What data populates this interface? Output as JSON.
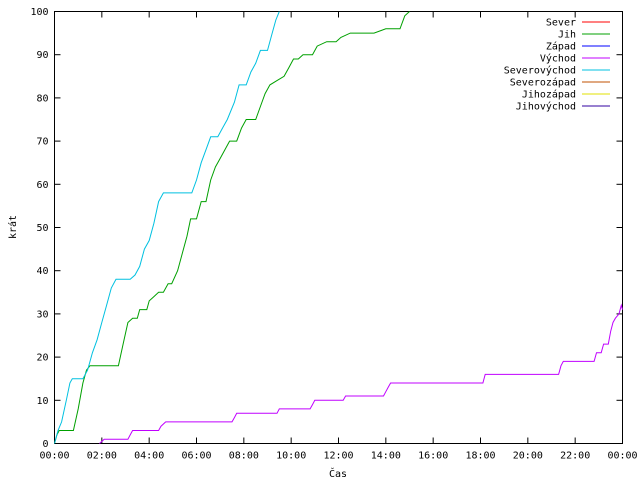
{
  "chart_data": {
    "type": "line",
    "xlabel": "Čas",
    "ylabel": "krát",
    "x_unit": "hours",
    "xlim": [
      0,
      24
    ],
    "ylim": [
      0,
      100
    ],
    "y_ticks": [
      0,
      10,
      20,
      30,
      40,
      50,
      60,
      70,
      80,
      90,
      100
    ],
    "x_ticks": [
      {
        "x": 0,
        "label": "00:00"
      },
      {
        "x": 2,
        "label": "02:00"
      },
      {
        "x": 4,
        "label": "04:00"
      },
      {
        "x": 6,
        "label": "06:00"
      },
      {
        "x": 8,
        "label": "08:00"
      },
      {
        "x": 10,
        "label": "10:00"
      },
      {
        "x": 12,
        "label": "12:00"
      },
      {
        "x": 14,
        "label": "14:00"
      },
      {
        "x": 16,
        "label": "16:00"
      },
      {
        "x": 18,
        "label": "18:00"
      },
      {
        "x": 20,
        "label": "20:00"
      },
      {
        "x": 22,
        "label": "22:00"
      },
      {
        "x": 24,
        "label": "00:00"
      }
    ],
    "grid": false,
    "legend_position": "top-right",
    "series": [
      {
        "name": "Sever",
        "color": "#ff0000",
        "points": []
      },
      {
        "name": "Jih",
        "color": "#00a000",
        "points": [
          [
            0.0,
            0
          ],
          [
            0.1,
            2
          ],
          [
            0.2,
            3
          ],
          [
            0.8,
            3
          ],
          [
            1.0,
            8
          ],
          [
            1.2,
            14
          ],
          [
            1.35,
            17
          ],
          [
            1.5,
            18
          ],
          [
            2.7,
            18
          ],
          [
            2.9,
            23
          ],
          [
            3.1,
            28
          ],
          [
            3.3,
            29
          ],
          [
            3.5,
            29
          ],
          [
            3.6,
            31
          ],
          [
            3.9,
            31
          ],
          [
            4.0,
            33
          ],
          [
            4.2,
            34
          ],
          [
            4.4,
            35
          ],
          [
            4.6,
            35
          ],
          [
            4.8,
            37
          ],
          [
            4.95,
            37
          ],
          [
            5.2,
            40
          ],
          [
            5.4,
            44
          ],
          [
            5.6,
            48
          ],
          [
            5.75,
            52
          ],
          [
            6.0,
            52
          ],
          [
            6.2,
            56
          ],
          [
            6.4,
            56
          ],
          [
            6.6,
            61
          ],
          [
            6.8,
            64
          ],
          [
            7.0,
            66
          ],
          [
            7.2,
            68
          ],
          [
            7.4,
            70
          ],
          [
            7.7,
            70
          ],
          [
            7.9,
            73
          ],
          [
            8.1,
            75
          ],
          [
            8.5,
            75
          ],
          [
            8.7,
            78
          ],
          [
            8.9,
            81
          ],
          [
            9.1,
            83
          ],
          [
            9.4,
            84
          ],
          [
            9.7,
            85
          ],
          [
            9.9,
            87
          ],
          [
            10.1,
            89
          ],
          [
            10.3,
            89
          ],
          [
            10.5,
            90
          ],
          [
            10.9,
            90
          ],
          [
            11.1,
            92
          ],
          [
            11.5,
            93
          ],
          [
            11.9,
            93
          ],
          [
            12.1,
            94
          ],
          [
            12.5,
            95
          ],
          [
            13.0,
            95
          ],
          [
            13.5,
            95
          ],
          [
            14.0,
            96
          ],
          [
            14.6,
            96
          ],
          [
            14.8,
            99
          ],
          [
            15.0,
            100
          ]
        ]
      },
      {
        "name": "Západ",
        "color": "#0000ff",
        "points": []
      },
      {
        "name": "Východ",
        "color": "#c000ff",
        "points": [
          [
            1.9,
            0
          ],
          [
            2.1,
            1
          ],
          [
            3.1,
            1
          ],
          [
            3.2,
            2
          ],
          [
            3.3,
            3
          ],
          [
            4.4,
            3
          ],
          [
            4.5,
            4
          ],
          [
            4.7,
            5
          ],
          [
            7.5,
            5
          ],
          [
            7.6,
            6
          ],
          [
            7.7,
            7
          ],
          [
            9.4,
            7
          ],
          [
            9.5,
            8
          ],
          [
            10.8,
            8
          ],
          [
            10.9,
            9
          ],
          [
            11.0,
            10
          ],
          [
            12.2,
            10
          ],
          [
            12.3,
            11
          ],
          [
            13.9,
            11
          ],
          [
            14.0,
            12
          ],
          [
            14.1,
            13
          ],
          [
            14.2,
            14
          ],
          [
            18.1,
            14
          ],
          [
            18.2,
            16
          ],
          [
            21.3,
            16
          ],
          [
            21.4,
            18
          ],
          [
            21.5,
            19
          ],
          [
            22.8,
            19
          ],
          [
            22.9,
            21
          ],
          [
            23.1,
            21
          ],
          [
            23.2,
            23
          ],
          [
            23.4,
            23
          ],
          [
            23.5,
            26
          ],
          [
            23.6,
            28
          ],
          [
            23.7,
            29
          ],
          [
            23.85,
            30
          ],
          [
            23.95,
            32
          ],
          [
            24.0,
            31
          ]
        ]
      },
      {
        "name": "Severovýchod",
        "color": "#00c0e0",
        "points": [
          [
            0.0,
            0
          ],
          [
            0.15,
            3
          ],
          [
            0.3,
            5
          ],
          [
            0.5,
            10
          ],
          [
            0.65,
            14
          ],
          [
            0.75,
            15
          ],
          [
            1.2,
            15
          ],
          [
            1.4,
            17
          ],
          [
            1.6,
            21
          ],
          [
            1.8,
            24
          ],
          [
            2.0,
            28
          ],
          [
            2.2,
            32
          ],
          [
            2.4,
            36
          ],
          [
            2.6,
            38
          ],
          [
            3.2,
            38
          ],
          [
            3.4,
            39
          ],
          [
            3.6,
            41
          ],
          [
            3.8,
            45
          ],
          [
            4.0,
            47
          ],
          [
            4.2,
            51
          ],
          [
            4.4,
            56
          ],
          [
            4.6,
            58
          ],
          [
            5.8,
            58
          ],
          [
            6.0,
            61
          ],
          [
            6.2,
            65
          ],
          [
            6.4,
            68
          ],
          [
            6.6,
            71
          ],
          [
            6.9,
            71
          ],
          [
            7.1,
            73
          ],
          [
            7.3,
            75
          ],
          [
            7.6,
            79
          ],
          [
            7.8,
            83
          ],
          [
            8.1,
            83
          ],
          [
            8.3,
            86
          ],
          [
            8.5,
            88
          ],
          [
            8.7,
            91
          ],
          [
            9.0,
            91
          ],
          [
            9.2,
            95
          ],
          [
            9.35,
            98
          ],
          [
            9.5,
            100
          ]
        ]
      },
      {
        "name": "Severozápad",
        "color": "#c05000",
        "points": []
      },
      {
        "name": "Jihozápad",
        "color": "#e0e000",
        "points": []
      },
      {
        "name": "Jihovýchod",
        "color": "#3000a0",
        "points": []
      }
    ]
  }
}
